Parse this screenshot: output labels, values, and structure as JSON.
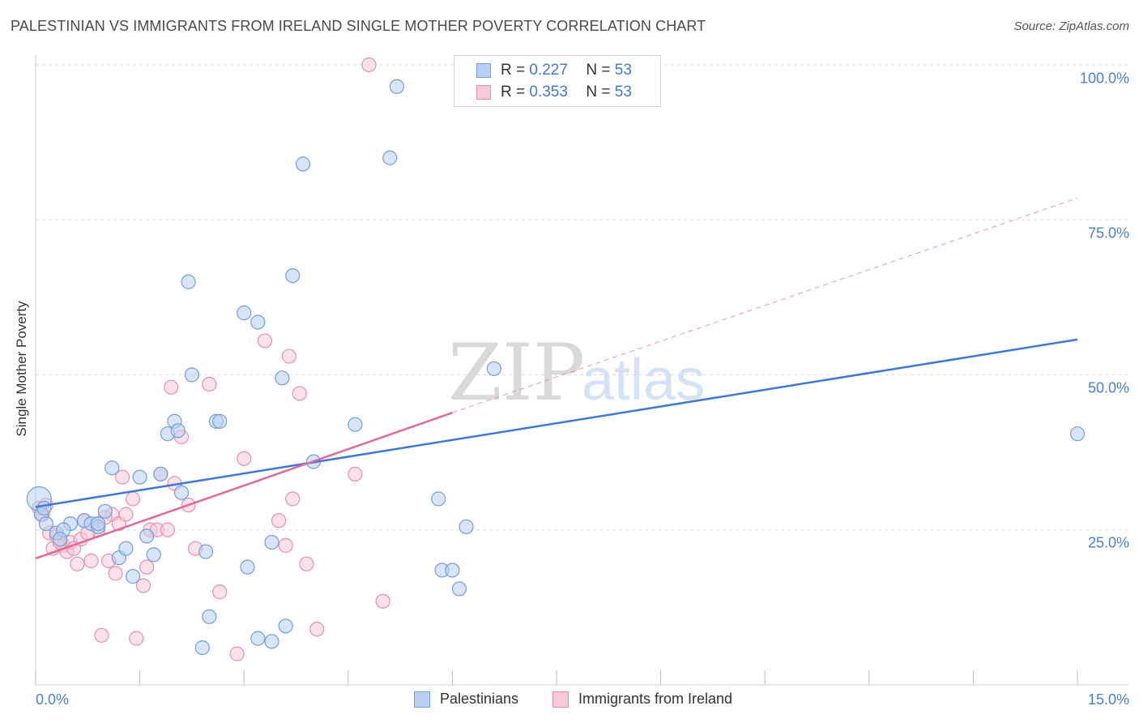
{
  "title": "PALESTINIAN VS IMMIGRANTS FROM IRELAND SINGLE MOTHER POVERTY CORRELATION CHART",
  "source": "Source: ZipAtlas.com",
  "watermark": {
    "zip": "ZIP",
    "atlas": "atlas"
  },
  "legend": {
    "r_label": "R =",
    "n_label": "N =",
    "rows": [
      {
        "r": "0.227",
        "n": "53",
        "fill": "#b8d0f2",
        "stroke": "#6f9ee0"
      },
      {
        "r": "0.353",
        "n": "53",
        "fill": "#f8c9d7",
        "stroke": "#e88fab"
      }
    ]
  },
  "chart_data": {
    "type": "scatter",
    "xlabel": "",
    "ylabel": "Single Mother Poverty",
    "xlim": [
      0,
      15
    ],
    "ylim": [
      0,
      100
    ],
    "x_ticks": [
      "0.0%",
      "15.0%"
    ],
    "y_ticks": [
      "25.0%",
      "50.0%",
      "75.0%",
      "100.0%"
    ],
    "grid": true,
    "colors": {
      "blue_fill": "#b8d0f2",
      "blue_stroke": "#6f9ee0",
      "blue_line": "#3f78d6",
      "pink_fill": "#f8c9d7",
      "pink_stroke": "#e88fab",
      "pink_line": "#e0699a"
    },
    "series": [
      {
        "name": "Palestinians",
        "points": [
          [
            0.05,
            30.0
          ],
          [
            0.08,
            27.5
          ],
          [
            0.3,
            24.5
          ],
          [
            0.5,
            26.0
          ],
          [
            0.7,
            26.5
          ],
          [
            0.8,
            26.0
          ],
          [
            0.9,
            25.5
          ],
          [
            1.1,
            35.0
          ],
          [
            1.0,
            28.0
          ],
          [
            1.2,
            20.5
          ],
          [
            1.3,
            22.0
          ],
          [
            1.4,
            17.5
          ],
          [
            1.5,
            33.5
          ],
          [
            1.6,
            24.0
          ],
          [
            1.7,
            21.0
          ],
          [
            1.8,
            34.0
          ],
          [
            1.9,
            40.5
          ],
          [
            2.0,
            42.5
          ],
          [
            2.05,
            41.0
          ],
          [
            2.1,
            31.0
          ],
          [
            2.2,
            65.0
          ],
          [
            2.25,
            50.0
          ],
          [
            2.4,
            6.0
          ],
          [
            2.45,
            21.5
          ],
          [
            2.5,
            11.0
          ],
          [
            2.6,
            42.5
          ],
          [
            2.65,
            42.5
          ],
          [
            3.0,
            60.0
          ],
          [
            3.05,
            19.0
          ],
          [
            3.2,
            58.5
          ],
          [
            3.2,
            7.5
          ],
          [
            3.4,
            7.0
          ],
          [
            3.4,
            23.0
          ],
          [
            3.55,
            49.5
          ],
          [
            3.6,
            9.5
          ],
          [
            3.7,
            66.0
          ],
          [
            3.85,
            84.0
          ],
          [
            4.0,
            36.0
          ],
          [
            4.6,
            42.0
          ],
          [
            5.1,
            85.0
          ],
          [
            5.2,
            96.5
          ],
          [
            5.8,
            30.0
          ],
          [
            5.85,
            18.5
          ],
          [
            6.0,
            18.5
          ],
          [
            6.1,
            15.5
          ],
          [
            6.2,
            25.5
          ],
          [
            6.6,
            51.0
          ],
          [
            15.0,
            40.5
          ],
          [
            0.4,
            25.0
          ],
          [
            0.35,
            23.5
          ],
          [
            0.15,
            26.0
          ],
          [
            0.12,
            28.5
          ],
          [
            0.9,
            26.0
          ]
        ],
        "trend": {
          "x": [
            0,
            15
          ],
          "y": [
            28.7,
            55.7
          ],
          "style": "solid"
        }
      },
      {
        "name": "Immigrants from Ireland",
        "points": [
          [
            0.05,
            28.5
          ],
          [
            0.1,
            27.5
          ],
          [
            0.2,
            24.5
          ],
          [
            0.25,
            22.0
          ],
          [
            0.3,
            24.0
          ],
          [
            0.4,
            22.5
          ],
          [
            0.45,
            21.5
          ],
          [
            0.5,
            23.0
          ],
          [
            0.6,
            19.5
          ],
          [
            0.65,
            23.5
          ],
          [
            0.7,
            26.5
          ],
          [
            0.8,
            20.0
          ],
          [
            0.9,
            25.0
          ],
          [
            0.95,
            8.0
          ],
          [
            1.05,
            20.0
          ],
          [
            1.1,
            27.5
          ],
          [
            1.15,
            18.0
          ],
          [
            1.2,
            26.0
          ],
          [
            1.25,
            33.5
          ],
          [
            1.3,
            27.5
          ],
          [
            1.4,
            30.0
          ],
          [
            1.45,
            7.5
          ],
          [
            1.55,
            16.0
          ],
          [
            1.6,
            19.0
          ],
          [
            1.65,
            25.0
          ],
          [
            1.75,
            25.0
          ],
          [
            1.8,
            34.0
          ],
          [
            1.9,
            25.0
          ],
          [
            1.95,
            48.0
          ],
          [
            2.0,
            32.5
          ],
          [
            2.1,
            40.0
          ],
          [
            2.2,
            29.0
          ],
          [
            2.3,
            22.0
          ],
          [
            2.5,
            48.5
          ],
          [
            2.65,
            15.0
          ],
          [
            2.9,
            5.0
          ],
          [
            3.0,
            36.5
          ],
          [
            3.3,
            55.5
          ],
          [
            3.5,
            26.5
          ],
          [
            3.6,
            22.5
          ],
          [
            3.65,
            53.0
          ],
          [
            3.7,
            30.0
          ],
          [
            3.8,
            47.0
          ],
          [
            3.9,
            19.5
          ],
          [
            4.05,
            9.0
          ],
          [
            4.6,
            34.0
          ],
          [
            4.8,
            100.0
          ],
          [
            5.0,
            13.5
          ],
          [
            0.15,
            29.0
          ],
          [
            0.35,
            23.0
          ],
          [
            0.55,
            22.0
          ],
          [
            1.0,
            27.0
          ],
          [
            0.75,
            24.5
          ]
        ],
        "trend": {
          "x": [
            0,
            6.0
          ],
          "y": [
            20.4,
            43.9
          ],
          "style": "solid"
        },
        "trend_extension": {
          "x": [
            6.0,
            15
          ],
          "y": [
            43.9,
            78.5
          ],
          "style": "dashed"
        }
      }
    ]
  }
}
